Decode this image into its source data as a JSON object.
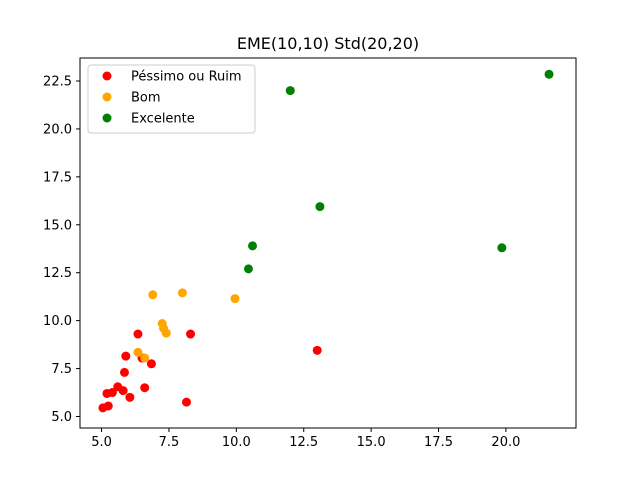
{
  "chart_data": {
    "type": "scatter",
    "title": "EME(10,10) Std(20,20)",
    "xlabel": "",
    "ylabel": "",
    "xlim": [
      4.2,
      22.6
    ],
    "ylim": [
      4.4,
      23.7
    ],
    "xticks": [
      5.0,
      7.5,
      10.0,
      12.5,
      15.0,
      17.5,
      20.0
    ],
    "xtick_labels": [
      "5.0",
      "7.5",
      "10.0",
      "12.5",
      "15.0",
      "17.5",
      "20.0"
    ],
    "yticks": [
      5.0,
      7.5,
      10.0,
      12.5,
      15.0,
      17.5,
      20.0,
      22.5
    ],
    "ytick_labels": [
      "5.0",
      "7.5",
      "10.0",
      "12.5",
      "15.0",
      "17.5",
      "20.0",
      "22.5"
    ],
    "grid": false,
    "legend_position": "top-left",
    "series": [
      {
        "name": "Péssimo ou Ruim",
        "color": "#ff0000",
        "x": [
          5.05,
          5.25,
          5.2,
          5.4,
          5.6,
          5.8,
          5.85,
          5.9,
          6.05,
          6.35,
          6.5,
          6.6,
          6.85,
          8.15,
          8.3,
          13.0
        ],
        "y": [
          5.45,
          5.55,
          6.2,
          6.25,
          6.55,
          6.35,
          7.3,
          8.15,
          6.0,
          9.3,
          8.05,
          6.5,
          7.75,
          5.75,
          9.3,
          8.45
        ]
      },
      {
        "name": "Bom",
        "color": "#ffa500",
        "x": [
          6.35,
          6.6,
          6.9,
          7.25,
          7.3,
          7.4,
          8.0,
          9.95
        ],
        "y": [
          8.35,
          8.05,
          11.35,
          9.85,
          9.6,
          9.35,
          11.45,
          11.15
        ]
      },
      {
        "name": "Excelente",
        "color": "#008000",
        "x": [
          10.45,
          10.6,
          12.0,
          13.1,
          19.85,
          21.6
        ],
        "y": [
          12.7,
          13.9,
          22.0,
          15.95,
          13.8,
          22.85
        ]
      }
    ]
  }
}
